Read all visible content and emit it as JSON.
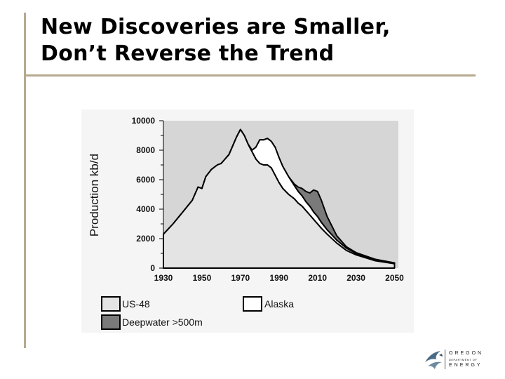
{
  "slide": {
    "title_line1": "New Discoveries are Smaller,",
    "title_line2": "Don’t Reverse the Trend"
  },
  "logo": {
    "line1": "OREGON",
    "line2": "DEPARTMENT OF",
    "line3": "ENERGY"
  },
  "colors": {
    "accent_rule": "#b7a88e",
    "us48_fill": "#e4e4e4",
    "deepwater_fill": "#7a7a7a",
    "alaska_fill": "#ffffff",
    "plot_background": "#d6d6d6",
    "outline": "#000000"
  },
  "chart_data": {
    "type": "area",
    "stacked": true,
    "ylabel": "Production kb/d",
    "xlabel": "",
    "xlim": [
      1930,
      2052
    ],
    "ylim": [
      0,
      10000
    ],
    "x_ticks": [
      "1930",
      "1950",
      "1970",
      "1990",
      "2010",
      "2030",
      "2050"
    ],
    "y_ticks": [
      "0",
      "2000",
      "4000",
      "6000",
      "8000",
      "10000"
    ],
    "x": [
      1930,
      1935,
      1940,
      1945,
      1948,
      1950,
      1952,
      1955,
      1958,
      1960,
      1962,
      1964,
      1966,
      1968,
      1970,
      1972,
      1974,
      1976,
      1978,
      1980,
      1982,
      1984,
      1986,
      1988,
      1990,
      1992,
      1995,
      1998,
      2000,
      2002,
      2004,
      2006,
      2008,
      2010,
      2012,
      2015,
      2020,
      2025,
      2030,
      2040,
      2050
    ],
    "series": [
      {
        "name": "US-48",
        "values": [
          2300,
          3000,
          3800,
          4600,
          5500,
          5400,
          6200,
          6700,
          7000,
          7100,
          7400,
          7700,
          8300,
          8900,
          9400,
          9000,
          8400,
          7900,
          7400,
          7100,
          7000,
          7000,
          6800,
          6300,
          5800,
          5400,
          5000,
          4700,
          4400,
          4200,
          3900,
          3600,
          3300,
          3000,
          2700,
          2300,
          1700,
          1200,
          900,
          500,
          300
        ]
      },
      {
        "name": "Alaska",
        "values": [
          0,
          0,
          0,
          0,
          0,
          0,
          0,
          0,
          0,
          0,
          0,
          0,
          0,
          0,
          0,
          0,
          0,
          100,
          800,
          1600,
          1700,
          1800,
          1800,
          1900,
          1700,
          1500,
          1200,
          900,
          800,
          700,
          600,
          600,
          500,
          500,
          400,
          300,
          200,
          150,
          100,
          80,
          50
        ]
      },
      {
        "name": "Deepwater >500m",
        "values": [
          0,
          0,
          0,
          0,
          0,
          0,
          0,
          0,
          0,
          0,
          0,
          0,
          0,
          0,
          0,
          0,
          0,
          0,
          0,
          0,
          0,
          0,
          0,
          0,
          0,
          0,
          0,
          100,
          300,
          500,
          700,
          900,
          1500,
          1700,
          1500,
          900,
          300,
          100,
          50,
          20,
          0
        ]
      }
    ],
    "legend": {
      "placement": "bottom",
      "entries": [
        "US-48",
        "Alaska",
        "Deepwater >500m"
      ]
    },
    "grid": false
  }
}
